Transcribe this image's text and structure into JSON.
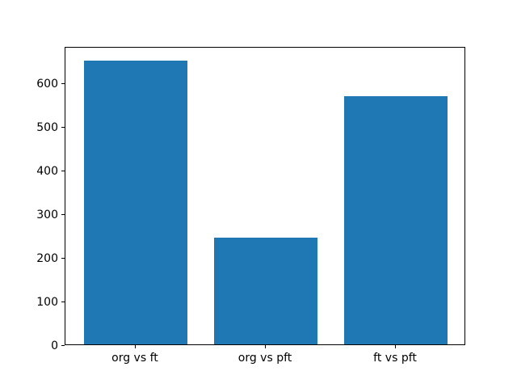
{
  "figure": {
    "background_color": "#ffffff",
    "axis_color": "#000000"
  },
  "chart_data": {
    "type": "bar",
    "categories": [
      "org vs ft",
      "org vs pft",
      "ft vs pft"
    ],
    "values": [
      650,
      245,
      567
    ],
    "title": "",
    "xlabel": "",
    "ylabel": "",
    "xlim": [
      -0.54,
      2.54
    ],
    "ylim": [
      0,
      682.5
    ],
    "yticks": [
      0,
      100,
      200,
      300,
      400,
      500,
      600
    ],
    "bar_width": 0.8,
    "bar_color": "#1f77b4",
    "grid": false,
    "legend": "none"
  }
}
